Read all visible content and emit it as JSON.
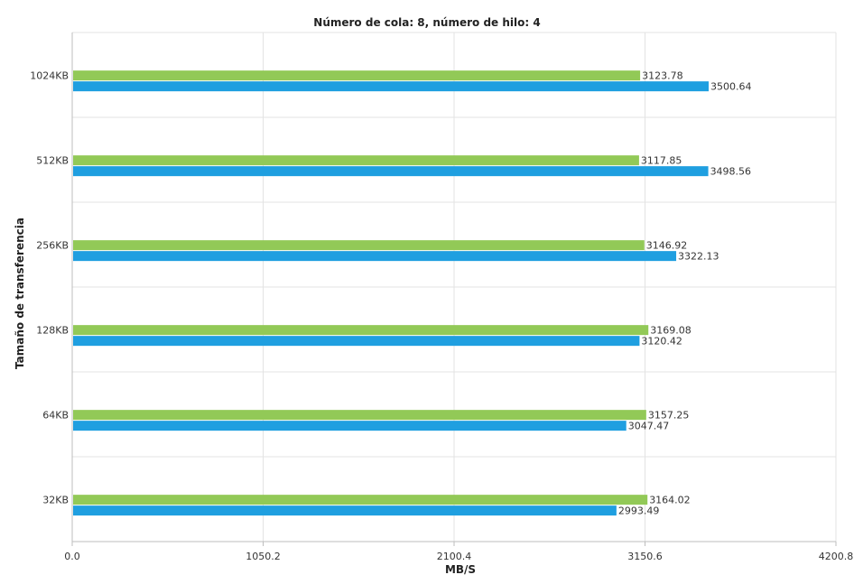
{
  "chart_data": {
    "type": "bar",
    "orientation": "horizontal",
    "title": "Número de cola: 8, número de hilo: 4",
    "xlabel": "MB/S",
    "ylabel": "Tamaño de transferencia",
    "xlim": [
      0,
      4200.8
    ],
    "xticks": [
      "0.0",
      "1050.2",
      "2100.4",
      "3150.6",
      "4200.8"
    ],
    "categories": [
      "1024KB",
      "512KB",
      "256KB",
      "128KB",
      "64KB",
      "32KB"
    ],
    "series": [
      {
        "color": "#92c957",
        "values": [
          3123.78,
          3117.85,
          3146.92,
          3169.08,
          3157.25,
          3164.02
        ]
      },
      {
        "color": "#1f9fe0",
        "values": [
          3500.64,
          3498.56,
          3322.13,
          3120.42,
          3047.47,
          2993.49
        ]
      }
    ],
    "grid": true,
    "legend": "none"
  }
}
